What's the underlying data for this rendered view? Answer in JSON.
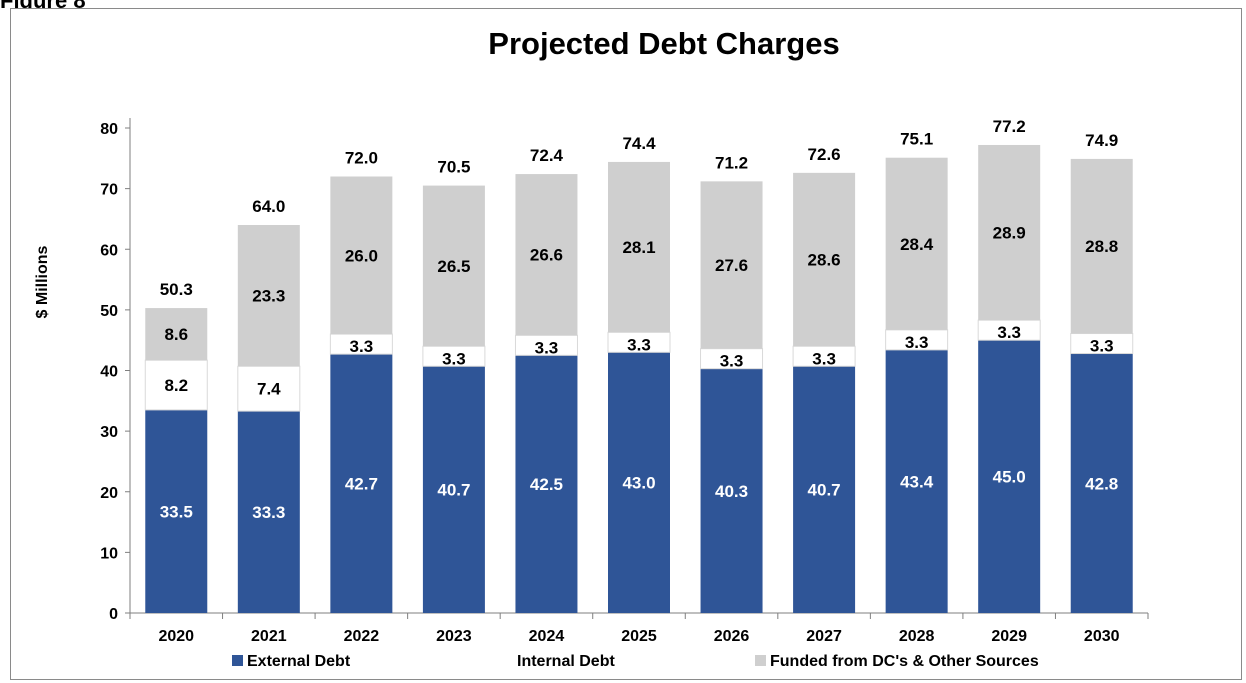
{
  "figure_label": "Figure 8",
  "chart_data": {
    "type": "bar",
    "stacked": true,
    "title": "Projected Debt Charges",
    "ylabel": "$ Millions",
    "xlabel": "",
    "ylim": [
      0,
      80
    ],
    "yticks": [
      0,
      10,
      20,
      30,
      40,
      50,
      60,
      70,
      80
    ],
    "grid": false,
    "legend_position": "bottom",
    "categories": [
      "2020",
      "2021",
      "2022",
      "2023",
      "2024",
      "2025",
      "2026",
      "2027",
      "2028",
      "2029",
      "2030"
    ],
    "series": [
      {
        "name": "External Debt",
        "color": "#2f5597",
        "label_color": "#ffffff",
        "values": [
          33.5,
          33.3,
          42.7,
          40.7,
          42.5,
          43.0,
          40.3,
          40.7,
          43.4,
          45.0,
          42.8
        ]
      },
      {
        "name": "Internal Debt",
        "color": "#ffffff",
        "label_color": "#000000",
        "values": [
          8.2,
          7.4,
          3.3,
          3.3,
          3.3,
          3.3,
          3.3,
          3.3,
          3.3,
          3.3,
          3.3
        ]
      },
      {
        "name": "Funded from DC's & Other Sources",
        "color": "#cfcfcf",
        "label_color": "#000000",
        "values": [
          8.6,
          23.3,
          26.0,
          26.5,
          26.6,
          28.1,
          27.6,
          28.6,
          28.4,
          28.9,
          28.8
        ]
      }
    ],
    "totals": [
      50.3,
      64.0,
      72.0,
      70.5,
      72.4,
      74.4,
      71.2,
      72.6,
      75.1,
      77.2,
      74.9
    ]
  }
}
